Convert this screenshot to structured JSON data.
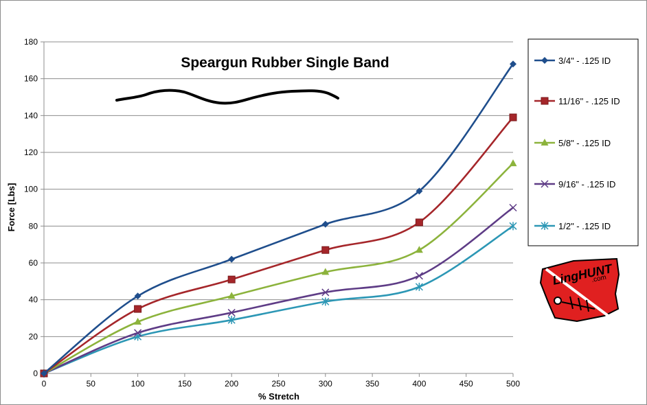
{
  "chart_data": {
    "type": "line",
    "title": "Speargun Rubber Single Band",
    "xlabel": "% Stretch",
    "ylabel": "Force   [Lbs]",
    "x": [
      0,
      100,
      200,
      300,
      400,
      500
    ],
    "xlim": [
      0,
      500
    ],
    "ylim": [
      0,
      180
    ],
    "xticks": [
      "0",
      "50",
      "100",
      "150",
      "200",
      "250",
      "300",
      "350",
      "400",
      "450",
      "500"
    ],
    "yticks": [
      "0",
      "20",
      "40",
      "60",
      "80",
      "100",
      "120",
      "140",
      "160",
      "180"
    ],
    "grid": "horizontal",
    "legend_position": "right",
    "series": [
      {
        "name": "3/4\" - .125 ID",
        "values": [
          0,
          42,
          62,
          81,
          99,
          168
        ],
        "color": "#1f4e8c",
        "marker": "diamond"
      },
      {
        "name": "11/16\" - .125 ID",
        "values": [
          0,
          35,
          51,
          67,
          82,
          139
        ],
        "color": "#a5262a",
        "marker": "square"
      },
      {
        "name": "5/8\" - .125 ID",
        "values": [
          0,
          28,
          42,
          55,
          67,
          114
        ],
        "color": "#8cb33c",
        "marker": "triangle"
      },
      {
        "name": "9/16\" - .125 ID",
        "values": [
          0,
          22,
          33,
          44,
          53,
          90
        ],
        "color": "#5e3c86",
        "marker": "x"
      },
      {
        "name": "1/2\" - .125 ID",
        "values": [
          0,
          20,
          29,
          39,
          47,
          80
        ],
        "color": "#2c97b5",
        "marker": "star"
      }
    ]
  },
  "logo": {
    "name": "LingHunt logo",
    "text": "LingHUNT",
    "sub": ".com",
    "color": "#e02020"
  }
}
